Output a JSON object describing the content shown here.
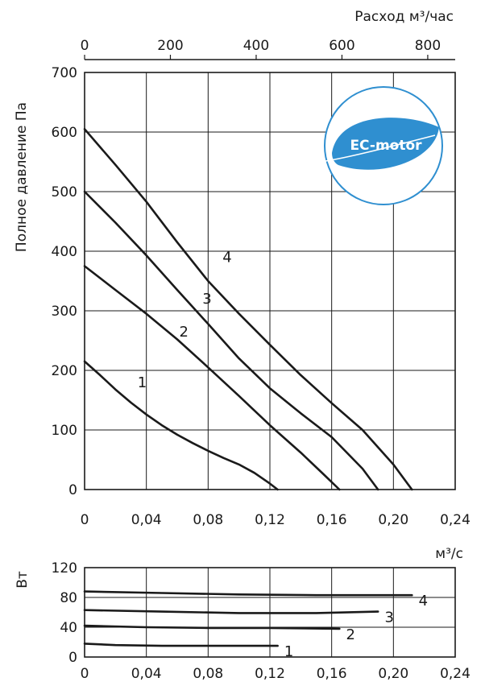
{
  "chart_data": [
    {
      "type": "line",
      "xlabel": "м³/с",
      "ylabel": "Полное давление Па",
      "x2label": "Расход м³/час",
      "xlim": [
        0,
        0.24
      ],
      "ylim": [
        0,
        700
      ],
      "x2lim": [
        0,
        864
      ],
      "x_ticks": [
        "0",
        "0,04",
        "0,08",
        "0,12",
        "0,16",
        "0,20",
        "0,24"
      ],
      "y_ticks": [
        "0",
        "100",
        "200",
        "300",
        "400",
        "500",
        "600",
        "700"
      ],
      "x2_ticks": [
        "0",
        "200",
        "400",
        "600",
        "800"
      ],
      "series": [
        {
          "name": "1",
          "x": [
            0,
            0.01,
            0.02,
            0.03,
            0.04,
            0.05,
            0.06,
            0.07,
            0.08,
            0.09,
            0.1,
            0.11,
            0.12,
            0.125
          ],
          "y": [
            215,
            192,
            168,
            146,
            126,
            108,
            92,
            78,
            65,
            53,
            42,
            28,
            10,
            0
          ]
        },
        {
          "name": "2",
          "x": [
            0,
            0.02,
            0.04,
            0.06,
            0.08,
            0.1,
            0.12,
            0.14,
            0.155,
            0.165
          ],
          "y": [
            375,
            335,
            295,
            252,
            205,
            157,
            108,
            62,
            25,
            0
          ]
        },
        {
          "name": "3",
          "x": [
            0,
            0.02,
            0.04,
            0.06,
            0.08,
            0.1,
            0.12,
            0.14,
            0.16,
            0.18,
            0.19
          ],
          "y": [
            500,
            448,
            393,
            335,
            278,
            220,
            170,
            128,
            88,
            35,
            0
          ]
        },
        {
          "name": "4",
          "x": [
            0,
            0.02,
            0.04,
            0.06,
            0.08,
            0.1,
            0.12,
            0.14,
            0.16,
            0.18,
            0.2,
            0.212
          ],
          "y": [
            605,
            545,
            483,
            415,
            350,
            295,
            243,
            192,
            145,
            100,
            42,
            0
          ]
        }
      ],
      "curve_labels": [
        "1",
        "2",
        "3",
        "4"
      ]
    },
    {
      "type": "line",
      "ylabel": "Вт",
      "xlim": [
        0,
        0.24
      ],
      "ylim": [
        0,
        120
      ],
      "x_ticks": [
        "0",
        "0,04",
        "0,08",
        "0,12",
        "0,16",
        "0,20",
        "0,24"
      ],
      "y_ticks": [
        "0",
        "40",
        "80",
        "120"
      ],
      "series": [
        {
          "name": "1",
          "x": [
            0,
            0.02,
            0.05,
            0.1,
            0.125
          ],
          "y": [
            18,
            16,
            15,
            15,
            15
          ]
        },
        {
          "name": "2",
          "x": [
            0,
            0.04,
            0.08,
            0.12,
            0.165
          ],
          "y": [
            42,
            40,
            39,
            39,
            38
          ]
        },
        {
          "name": "3",
          "x": [
            0,
            0.05,
            0.1,
            0.15,
            0.19
          ],
          "y": [
            63,
            61,
            59,
            59,
            61
          ]
        },
        {
          "name": "4",
          "x": [
            0,
            0.05,
            0.1,
            0.15,
            0.212
          ],
          "y": [
            88,
            86,
            84,
            83,
            83
          ]
        }
      ],
      "curve_labels": [
        "1",
        "2",
        "3",
        "4"
      ]
    }
  ],
  "logo": {
    "text": "EC-motor",
    "ring_color": "#2f8fd0",
    "leaf_color": "#2f8fd0",
    "icon": "leaf-icon"
  }
}
